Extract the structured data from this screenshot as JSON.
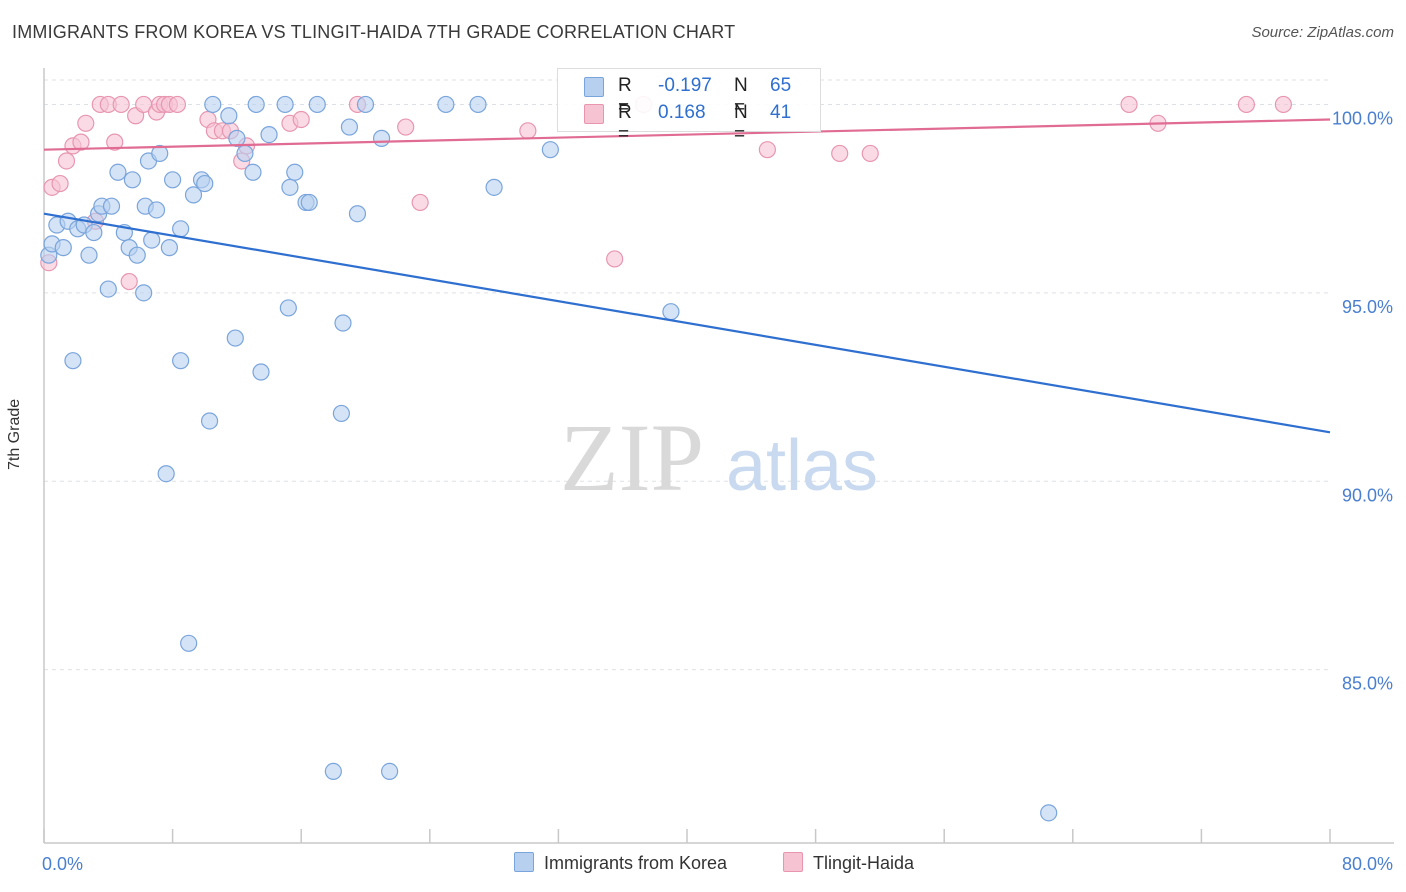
{
  "title": "IMMIGRANTS FROM KOREA VS TLINGIT-HAIDA 7TH GRADE CORRELATION CHART",
  "source": "Source: ZipAtlas.com",
  "watermark": {
    "zip": "ZIP",
    "atlas": "atlas"
  },
  "colors": {
    "blue_fill": "#b8d0f0",
    "blue_stroke": "#7aa5dc",
    "blue_line": "#2e6fcf",
    "pink_fill": "#f6c3d3",
    "pink_stroke": "#e896b0",
    "pink_line": "#e06b93",
    "tick_label": "#4a7fcf",
    "grid": "#dde0e6"
  },
  "legend_top": {
    "rows": [
      {
        "r_label": "R =",
        "r_value": "-0.197",
        "n_label": "N =",
        "n_value": "65"
      },
      {
        "r_label": "R =",
        "r_value": "0.168",
        "n_label": "N =",
        "n_value": "41"
      }
    ]
  },
  "legend_bottom": [
    "Immigrants from Korea",
    "Tlingit-Haida"
  ],
  "chart_data": {
    "type": "scatter",
    "title": "IMMIGRANTS FROM KOREA VS TLINGIT-HAIDA 7TH GRADE CORRELATION CHART",
    "xlabel": "",
    "ylabel": "7th Grade",
    "xlim": [
      0,
      80
    ],
    "ylim": [
      80.4,
      101.1
    ],
    "x_ticks": [
      0,
      8,
      16,
      24,
      32,
      40,
      48,
      56,
      64,
      72,
      80
    ],
    "x_tick_labels": [
      {
        "value": 0,
        "label": "0.0%"
      },
      {
        "value": 80,
        "label": "80.0%"
      }
    ],
    "y_tick_labels": [
      {
        "value": 100,
        "label": "100.0%"
      },
      {
        "value": 95,
        "label": "95.0%"
      },
      {
        "value": 90,
        "label": "90.0%"
      },
      {
        "value": 85,
        "label": "85.0%"
      }
    ],
    "series": [
      {
        "name": "Immigrants from Korea",
        "R": -0.197,
        "N": 65,
        "trend": {
          "x": [
            0,
            80
          ],
          "y": [
            97.1,
            91.3
          ]
        },
        "points": [
          [
            0.3,
            96.0
          ],
          [
            0.5,
            96.3
          ],
          [
            0.8,
            96.8
          ],
          [
            1.2,
            96.2
          ],
          [
            1.5,
            96.9
          ],
          [
            2.1,
            96.7
          ],
          [
            2.5,
            96.8
          ],
          [
            2.8,
            96.0
          ],
          [
            3.1,
            96.6
          ],
          [
            3.4,
            97.1
          ],
          [
            3.6,
            97.3
          ],
          [
            4.2,
            97.3
          ],
          [
            4.6,
            98.2
          ],
          [
            5.0,
            96.6
          ],
          [
            5.3,
            96.2
          ],
          [
            5.5,
            98.0
          ],
          [
            5.8,
            96.0
          ],
          [
            6.2,
            95.0
          ],
          [
            6.3,
            97.3
          ],
          [
            6.5,
            98.5
          ],
          [
            6.7,
            96.4
          ],
          [
            7.0,
            97.2
          ],
          [
            7.2,
            98.7
          ],
          [
            7.8,
            96.2
          ],
          [
            8.0,
            98.0
          ],
          [
            8.5,
            96.7
          ],
          [
            9.3,
            97.6
          ],
          [
            9.8,
            98.0
          ],
          [
            10.0,
            97.9
          ],
          [
            10.5,
            100.0
          ],
          [
            11.5,
            99.7
          ],
          [
            12.0,
            99.1
          ],
          [
            12.5,
            98.7
          ],
          [
            13.0,
            98.2
          ],
          [
            13.2,
            100.0
          ],
          [
            14.0,
            99.2
          ],
          [
            15.0,
            100.0
          ],
          [
            15.3,
            97.8
          ],
          [
            15.6,
            98.2
          ],
          [
            16.3,
            97.4
          ],
          [
            16.5,
            97.4
          ],
          [
            17.0,
            100.0
          ],
          [
            19.0,
            99.4
          ],
          [
            19.5,
            97.1
          ],
          [
            20.0,
            100.0
          ],
          [
            21.0,
            99.1
          ],
          [
            25.0,
            100.0
          ],
          [
            27.0,
            100.0
          ],
          [
            28.0,
            97.8
          ],
          [
            31.5,
            98.8
          ],
          [
            39.0,
            94.5
          ],
          [
            1.8,
            93.2
          ],
          [
            4.0,
            95.1
          ],
          [
            8.5,
            93.2
          ],
          [
            10.3,
            91.6
          ],
          [
            11.9,
            93.8
          ],
          [
            13.5,
            92.9
          ],
          [
            15.2,
            94.6
          ],
          [
            18.6,
            94.2
          ],
          [
            7.6,
            90.2
          ],
          [
            9.0,
            85.7
          ],
          [
            18.5,
            91.8
          ],
          [
            18.0,
            82.3
          ],
          [
            21.5,
            82.3
          ],
          [
            62.5,
            81.2
          ]
        ]
      },
      {
        "name": "Tlingit-Haida",
        "R": 0.168,
        "N": 41,
        "trend": {
          "x": [
            0,
            80
          ],
          "y": [
            98.8,
            99.6
          ]
        },
        "points": [
          [
            0.3,
            95.8
          ],
          [
            0.5,
            97.8
          ],
          [
            1.0,
            97.9
          ],
          [
            1.4,
            98.5
          ],
          [
            1.8,
            98.9
          ],
          [
            2.3,
            99.0
          ],
          [
            2.6,
            99.5
          ],
          [
            3.2,
            96.9
          ],
          [
            3.5,
            100.0
          ],
          [
            4.0,
            100.0
          ],
          [
            4.4,
            99.0
          ],
          [
            4.8,
            100.0
          ],
          [
            5.3,
            95.3
          ],
          [
            5.7,
            99.7
          ],
          [
            6.2,
            100.0
          ],
          [
            7.0,
            99.8
          ],
          [
            7.2,
            100.0
          ],
          [
            7.5,
            100.0
          ],
          [
            7.8,
            100.0
          ],
          [
            8.3,
            100.0
          ],
          [
            10.2,
            99.6
          ],
          [
            10.6,
            99.3
          ],
          [
            11.1,
            99.3
          ],
          [
            11.6,
            99.3
          ],
          [
            12.3,
            98.5
          ],
          [
            12.6,
            98.9
          ],
          [
            15.3,
            99.5
          ],
          [
            16.0,
            99.6
          ],
          [
            19.5,
            100.0
          ],
          [
            22.5,
            99.4
          ],
          [
            23.4,
            97.4
          ],
          [
            30.1,
            99.3
          ],
          [
            35.5,
            95.9
          ],
          [
            37.3,
            100.0
          ],
          [
            45.0,
            98.8
          ],
          [
            49.5,
            98.7
          ],
          [
            51.4,
            98.7
          ],
          [
            67.5,
            100.0
          ],
          [
            69.3,
            99.5
          ],
          [
            74.8,
            100.0
          ],
          [
            77.1,
            100.0
          ]
        ]
      }
    ]
  }
}
